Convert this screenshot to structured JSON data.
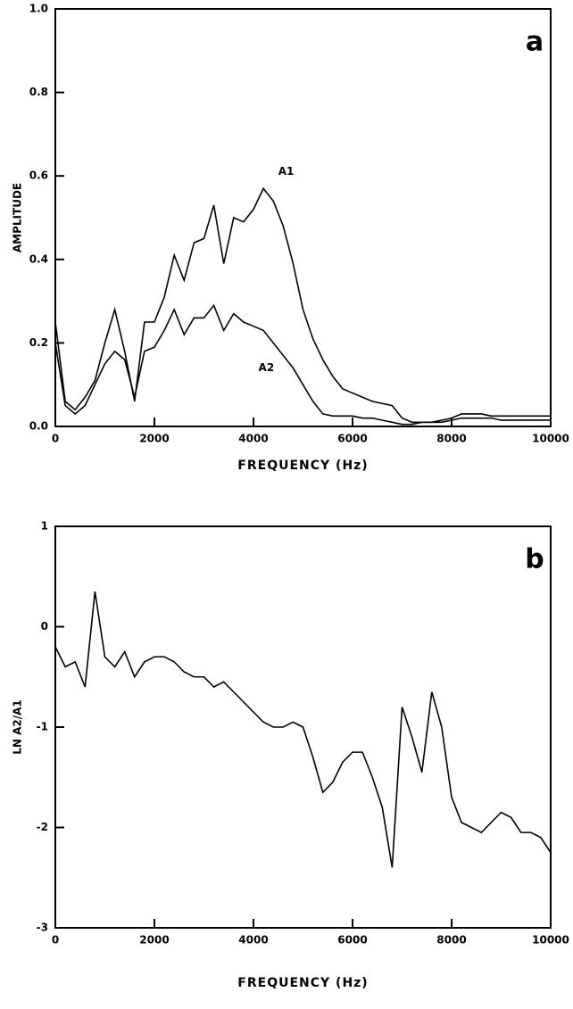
{
  "chart_data": [
    {
      "type": "line",
      "panel_label": "a",
      "xlabel": "FREQUENCY (Hz)",
      "ylabel": "AMPLITUDE",
      "x": [
        0,
        200,
        400,
        600,
        800,
        1000,
        1200,
        1400,
        1600,
        1800,
        2000,
        2200,
        2400,
        2600,
        2800,
        3000,
        3200,
        3400,
        3600,
        3800,
        4000,
        4200,
        4400,
        4600,
        4800,
        5000,
        5200,
        5400,
        5600,
        5800,
        6000,
        6200,
        6400,
        6600,
        6800,
        7000,
        7200,
        7400,
        7600,
        7800,
        8000,
        8200,
        8400,
        8600,
        8800,
        9000,
        9200,
        9400,
        9600,
        9800,
        10000
      ],
      "series": [
        {
          "name": "A1",
          "color": "#000000",
          "values": [
            0.25,
            0.06,
            0.04,
            0.07,
            0.11,
            0.2,
            0.28,
            0.18,
            0.06,
            0.25,
            0.25,
            0.31,
            0.41,
            0.35,
            0.44,
            0.45,
            0.53,
            0.39,
            0.5,
            0.49,
            0.52,
            0.57,
            0.54,
            0.48,
            0.39,
            0.28,
            0.21,
            0.16,
            0.12,
            0.09,
            0.08,
            0.07,
            0.06,
            0.055,
            0.05,
            0.02,
            0.01,
            0.01,
            0.01,
            0.01,
            0.015,
            0.02,
            0.02,
            0.02,
            0.02,
            0.015,
            0.015,
            0.015,
            0.015,
            0.015,
            0.015
          ]
        },
        {
          "name": "A2",
          "color": "#000000",
          "values": [
            0.2,
            0.05,
            0.03,
            0.05,
            0.1,
            0.15,
            0.18,
            0.16,
            0.07,
            0.18,
            0.19,
            0.23,
            0.28,
            0.22,
            0.26,
            0.26,
            0.29,
            0.23,
            0.27,
            0.25,
            0.24,
            0.23,
            0.2,
            0.17,
            0.14,
            0.1,
            0.06,
            0.03,
            0.025,
            0.025,
            0.025,
            0.02,
            0.02,
            0.015,
            0.01,
            0.005,
            0.005,
            0.01,
            0.01,
            0.015,
            0.02,
            0.03,
            0.03,
            0.03,
            0.025,
            0.025,
            0.025,
            0.025,
            0.025,
            0.025,
            0.025
          ]
        }
      ],
      "xlim": [
        0,
        10000
      ],
      "xticks": [
        0,
        2000,
        4000,
        6000,
        8000,
        10000
      ],
      "ylim": [
        0,
        1
      ],
      "yticks": [
        {
          "value": 0,
          "label": "0.0"
        },
        {
          "value": 0.2,
          "label": "0.2"
        },
        {
          "value": 0.4,
          "label": "0.4"
        },
        {
          "value": 0.6,
          "label": "0.6"
        },
        {
          "value": 0.8,
          "label": "0.8"
        },
        {
          "value": 1,
          "label": "1.0"
        }
      ]
    },
    {
      "type": "line",
      "panel_label": "b",
      "xlabel": "FREQUENCY (Hz)",
      "ylabel": "LN A2/A1",
      "x": [
        0,
        200,
        400,
        600,
        800,
        1000,
        1200,
        1400,
        1600,
        1800,
        2000,
        2200,
        2400,
        2600,
        2800,
        3000,
        3200,
        3400,
        3600,
        3800,
        4000,
        4200,
        4400,
        4600,
        4800,
        5000,
        5200,
        5400,
        5600,
        5800,
        6000,
        6200,
        6400,
        6600,
        6800,
        7000,
        7200,
        7400,
        7600,
        7800,
        8000,
        8200,
        8400,
        8600,
        8800,
        9000,
        9200,
        9400,
        9600,
        9800,
        10000
      ],
      "series": [
        {
          "color": "#000000",
          "values": [
            -0.2,
            -0.4,
            -0.35,
            -0.6,
            0.35,
            -0.3,
            -0.4,
            -0.25,
            -0.5,
            -0.35,
            -0.3,
            -0.3,
            -0.35,
            -0.45,
            -0.5,
            -0.5,
            -0.6,
            -0.55,
            -0.65,
            -0.75,
            -0.85,
            -0.95,
            -1.0,
            -1.0,
            -0.95,
            -1.0,
            -1.3,
            -1.65,
            -1.55,
            -1.35,
            -1.25,
            -1.25,
            -1.5,
            -1.8,
            -2.4,
            -0.8,
            -1.1,
            -1.45,
            -0.65,
            -1.0,
            -1.7,
            -1.95,
            -2.0,
            -2.05,
            -1.95,
            -1.85,
            -1.9,
            -2.05,
            -2.05,
            -2.1,
            -2.25
          ]
        }
      ],
      "xlim": [
        0,
        10000
      ],
      "xticks": [
        0,
        2000,
        4000,
        6000,
        8000,
        10000
      ],
      "ylim": [
        -3,
        1
      ],
      "yticks": [
        -3,
        -2,
        -1,
        0,
        1
      ]
    }
  ]
}
